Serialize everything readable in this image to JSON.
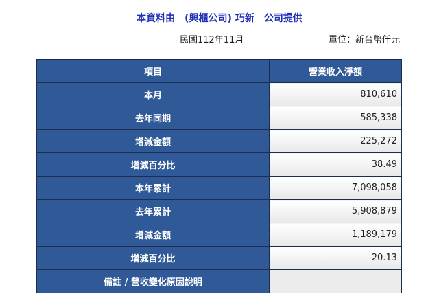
{
  "header": {
    "provider": "本資料由　(興櫃公司) 巧新　公司提供",
    "period": "民國112年11月",
    "unit": "單位：新台幣仟元"
  },
  "table": {
    "headers": [
      "項目",
      "營業收入淨額"
    ],
    "rows": [
      {
        "label": "本月",
        "value": "810,610"
      },
      {
        "label": "去年同期",
        "value": "585,338"
      },
      {
        "label": "增減金額",
        "value": "225,272"
      },
      {
        "label": "增減百分比",
        "value": "38.49"
      },
      {
        "label": "本年累計",
        "value": "7,098,058"
      },
      {
        "label": "去年累計",
        "value": "5,908,879"
      },
      {
        "label": "增減金額",
        "value": "1,189,179"
      },
      {
        "label": "增減百分比",
        "value": "20.13"
      },
      {
        "label": "備註 / 營收變化原因說明",
        "value": ""
      }
    ]
  }
}
